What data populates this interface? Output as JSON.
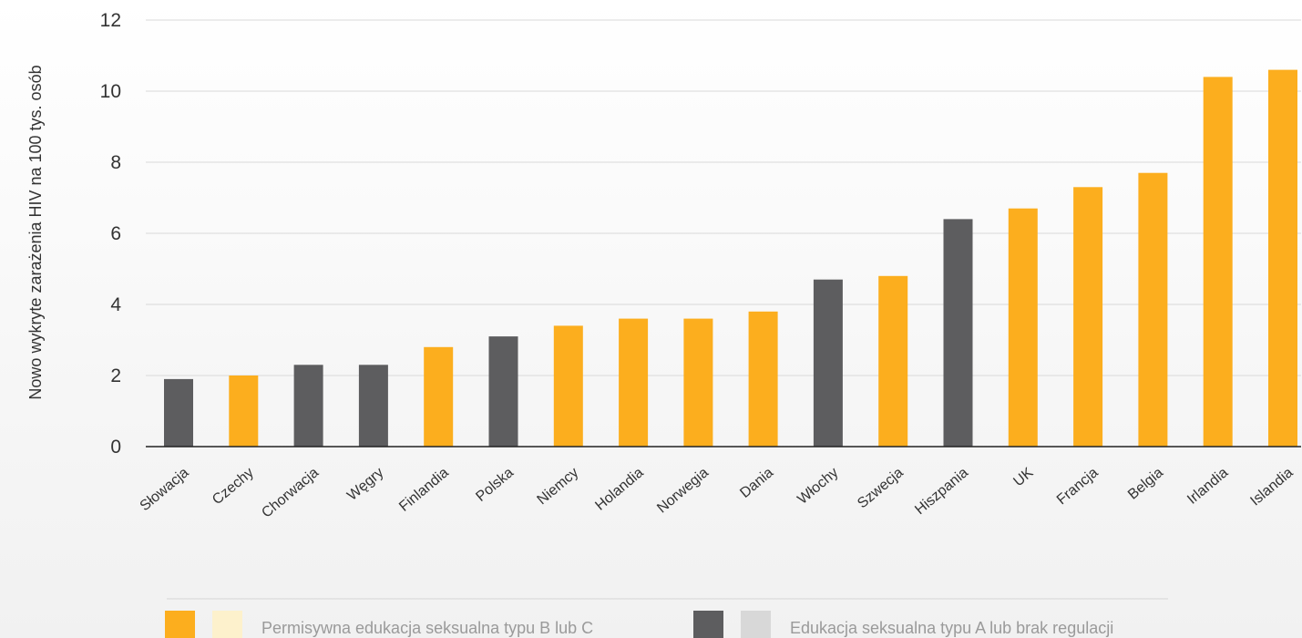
{
  "chart_data": {
    "type": "bar",
    "ylabel": "Nowo wykryte zarażenia HIV na 100 tys. osób",
    "ylim": [
      0,
      12
    ],
    "yticks": [
      0,
      2,
      4,
      6,
      8,
      10,
      12
    ],
    "grid": true,
    "categories": [
      "Słowacja",
      "Czechy",
      "Chorwacja",
      "Węgry",
      "Finlandia",
      "Polska",
      "Niemcy",
      "Holandia",
      "Norwegia",
      "Dania",
      "Włochy",
      "Szwecja",
      "Hiszpania",
      "UK",
      "Francja",
      "Belgia",
      "Irlandia",
      "Islandia"
    ],
    "values": [
      1.9,
      2.0,
      2.3,
      2.3,
      2.8,
      3.1,
      3.4,
      3.6,
      3.6,
      3.8,
      4.7,
      4.8,
      6.4,
      6.7,
      7.3,
      7.7,
      10.4,
      10.6
    ],
    "groups": [
      "A",
      "B",
      "A",
      "A",
      "B",
      "A",
      "B",
      "B",
      "B",
      "B",
      "A",
      "B",
      "A",
      "B",
      "B",
      "B",
      "B",
      "B"
    ],
    "legend": {
      "placement": "bottom",
      "items": [
        {
          "key": "B",
          "label": "Permisywna edukacja seksualna typu B lub C",
          "color": "#fcae1e",
          "color_light": "#fdf1cc"
        },
        {
          "key": "A",
          "label": "Edukacja seksualna typu A lub brak regulacji",
          "color": "#5d5d5f",
          "color_light": "#d8d8d8"
        }
      ]
    }
  }
}
